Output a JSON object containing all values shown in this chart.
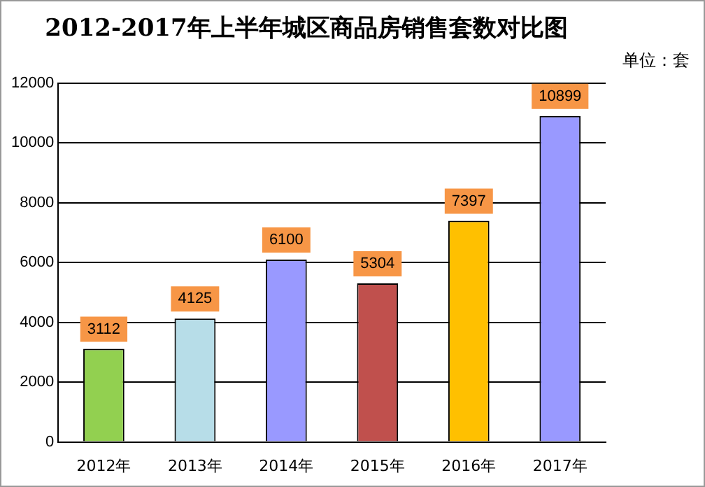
{
  "chart_data": {
    "type": "bar",
    "title": "2012-2017年上半年城区商品房销售套数对比图",
    "annotations": [
      "单位：套"
    ],
    "categories": [
      "2012年",
      "2013年",
      "2014年",
      "2015年",
      "2016年",
      "2017年"
    ],
    "values": [
      3112,
      4125,
      6100,
      5304,
      7397,
      10899
    ],
    "colors": [
      "#92d050",
      "#b7dde8",
      "#9999ff",
      "#c0504d",
      "#ffc000",
      "#9999ff"
    ],
    "ylim": [
      0,
      12000
    ],
    "yticks": [
      0,
      2000,
      4000,
      6000,
      8000,
      10000,
      12000
    ],
    "grid": "y",
    "data_labels": true,
    "legend": false
  }
}
